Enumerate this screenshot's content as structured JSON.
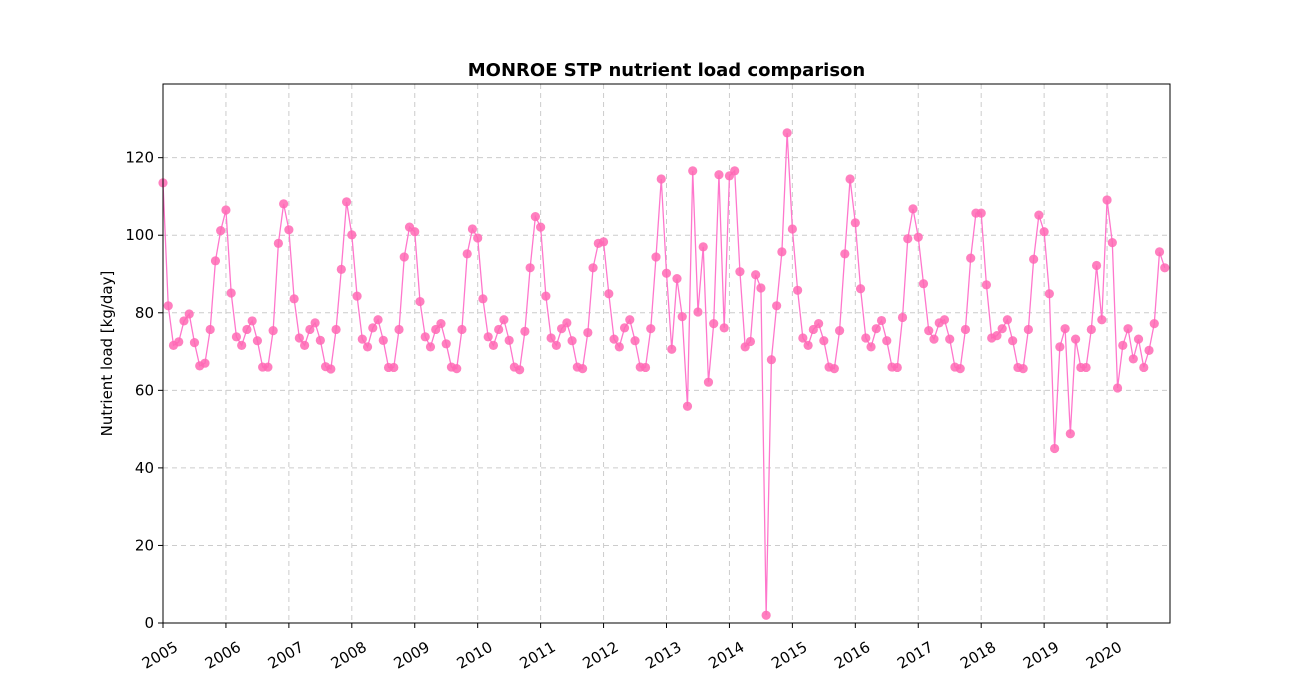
{
  "chart_data": {
    "type": "line",
    "title": "MONROE STP nutrient load comparison",
    "xlabel": "",
    "ylabel": "Nutrient load [kg/day]",
    "xlim": [
      "2005-01",
      "2021-01"
    ],
    "ylim": [
      0,
      139
    ],
    "yticks": [
      0,
      20,
      40,
      60,
      80,
      100,
      120
    ],
    "xticks": [
      "2005",
      "2006",
      "2007",
      "2008",
      "2009",
      "2010",
      "2011",
      "2012",
      "2013",
      "2014",
      "2015",
      "2016",
      "2017",
      "2018",
      "2019",
      "2020"
    ],
    "grid": true,
    "legend": "none",
    "marker": "circle",
    "colors": {
      "line": "#ff77cc",
      "marker": "#ff69b4",
      "grid": "#cccccc"
    },
    "series": [
      {
        "x": [
          "2005-01",
          "2005-02",
          "2005-03",
          "2005-04",
          "2005-05",
          "2005-06",
          "2005-07",
          "2005-08",
          "2005-09",
          "2005-10",
          "2005-11",
          "2005-12",
          "2006-01",
          "2006-02",
          "2006-03",
          "2006-04",
          "2006-05",
          "2006-06",
          "2006-07",
          "2006-08",
          "2006-09",
          "2006-10",
          "2006-11",
          "2006-12",
          "2007-01",
          "2007-02",
          "2007-03",
          "2007-04",
          "2007-05",
          "2007-06",
          "2007-07",
          "2007-08",
          "2007-09",
          "2007-10",
          "2007-11",
          "2007-12",
          "2008-01",
          "2008-02",
          "2008-03",
          "2008-04",
          "2008-05",
          "2008-06",
          "2008-07",
          "2008-08",
          "2008-09",
          "2008-10",
          "2008-11",
          "2008-12",
          "2009-01",
          "2009-02",
          "2009-03",
          "2009-04",
          "2009-05",
          "2009-06",
          "2009-07",
          "2009-08",
          "2009-09",
          "2009-10",
          "2009-11",
          "2009-12",
          "2010-01",
          "2010-02",
          "2010-03",
          "2010-04",
          "2010-05",
          "2010-06",
          "2010-07",
          "2010-08",
          "2010-09",
          "2010-10",
          "2010-11",
          "2010-12",
          "2011-01",
          "2011-02",
          "2011-03",
          "2011-04",
          "2011-05",
          "2011-06",
          "2011-07",
          "2011-08",
          "2011-09",
          "2011-10",
          "2011-11",
          "2011-12",
          "2012-01",
          "2012-02",
          "2012-03",
          "2012-04",
          "2012-05",
          "2012-06",
          "2012-07",
          "2012-08",
          "2012-09",
          "2012-10",
          "2012-11",
          "2012-12",
          "2013-01",
          "2013-02",
          "2013-03",
          "2013-04",
          "2013-05",
          "2013-06",
          "2013-07",
          "2013-08",
          "2013-09",
          "2013-10",
          "2013-11",
          "2013-12",
          "2014-01",
          "2014-02",
          "2014-03",
          "2014-04",
          "2014-05",
          "2014-06",
          "2014-07",
          "2014-08",
          "2014-09",
          "2014-10",
          "2014-11",
          "2014-12",
          "2015-01",
          "2015-02",
          "2015-03",
          "2015-04",
          "2015-05",
          "2015-06",
          "2015-07",
          "2015-08",
          "2015-09",
          "2015-10",
          "2015-11",
          "2015-12",
          "2016-01",
          "2016-02",
          "2016-03",
          "2016-04",
          "2016-05",
          "2016-06",
          "2016-07",
          "2016-08",
          "2016-09",
          "2016-10",
          "2016-11",
          "2016-12",
          "2017-01",
          "2017-02",
          "2017-03",
          "2017-04",
          "2017-05",
          "2017-06",
          "2017-07",
          "2017-08",
          "2017-09",
          "2017-10",
          "2017-11",
          "2017-12",
          "2018-01",
          "2018-02",
          "2018-03",
          "2018-04",
          "2018-05",
          "2018-06",
          "2018-07",
          "2018-08",
          "2018-09",
          "2018-10",
          "2018-11",
          "2018-12",
          "2019-01",
          "2019-02",
          "2019-03",
          "2019-04",
          "2019-05",
          "2019-06",
          "2019-07",
          "2019-08",
          "2019-09",
          "2019-10",
          "2019-11",
          "2019-12",
          "2020-01",
          "2020-02",
          "2020-03",
          "2020-04",
          "2020-05",
          "2020-06",
          "2020-07",
          "2020-08",
          "2020-09",
          "2020-10",
          "2020-11",
          "2020-12"
        ],
        "y": [
          113.5,
          81.8,
          71.6,
          72.5,
          77.9,
          79.7,
          72.3,
          66.3,
          67.0,
          75.7,
          93.4,
          101.2,
          106.5,
          85.1,
          73.8,
          71.6,
          75.7,
          77.9,
          72.8,
          66.0,
          66.0,
          75.4,
          97.9,
          108.1,
          101.4,
          83.6,
          73.5,
          71.6,
          75.7,
          77.4,
          72.9,
          66.1,
          65.5,
          75.7,
          91.2,
          108.6,
          100.1,
          84.3,
          73.2,
          71.2,
          76.1,
          78.2,
          72.9,
          65.9,
          65.9,
          75.7,
          94.4,
          102.1,
          100.9,
          82.9,
          73.8,
          71.2,
          75.7,
          77.2,
          72.0,
          66.0,
          65.6,
          75.7,
          95.2,
          101.6,
          99.3,
          83.6,
          73.8,
          71.6,
          75.7,
          78.2,
          72.9,
          66.0,
          65.3,
          75.2,
          91.6,
          104.8,
          102.1,
          84.3,
          73.5,
          71.6,
          75.9,
          77.4,
          72.8,
          66.0,
          65.6,
          74.9,
          91.6,
          97.9,
          98.3,
          84.9,
          73.2,
          71.2,
          76.1,
          78.2,
          72.8,
          66.0,
          65.9,
          75.9,
          94.4,
          114.5,
          90.2,
          70.6,
          88.8,
          79.0,
          55.9,
          116.6,
          80.2,
          97.0,
          62.1,
          77.2,
          115.6,
          76.1,
          115.3,
          116.6,
          90.6,
          71.2,
          72.6,
          89.8,
          86.4,
          2.0,
          67.9,
          81.8,
          95.7,
          126.4,
          101.6,
          85.8,
          73.5,
          71.6,
          75.7,
          77.2,
          72.8,
          66.0,
          65.6,
          75.4,
          95.2,
          114.5,
          103.2,
          86.2,
          73.5,
          71.2,
          75.9,
          78.0,
          72.8,
          66.0,
          65.9,
          78.8,
          99.1,
          106.8,
          99.5,
          87.5,
          75.4,
          73.2,
          77.4,
          78.2,
          73.2,
          66.0,
          65.6,
          75.7,
          94.1,
          105.7,
          105.7,
          87.2,
          73.5,
          74.1,
          75.9,
          78.2,
          72.8,
          65.9,
          65.6,
          75.7,
          93.8,
          105.2,
          100.9,
          84.9,
          45.0,
          71.2,
          75.9,
          48.8,
          73.2,
          65.9,
          65.9,
          75.7,
          92.2,
          78.2,
          109.1,
          98.1,
          60.6,
          71.6,
          75.9,
          68.1,
          73.2,
          65.9,
          70.3,
          77.2,
          95.7,
          91.6
        ]
      }
    ]
  }
}
